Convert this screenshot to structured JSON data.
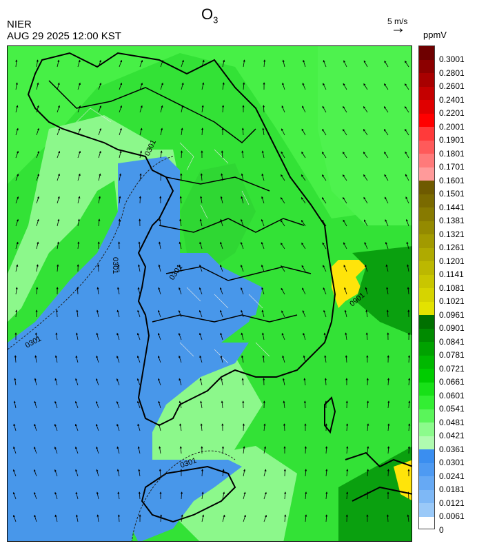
{
  "header": {
    "title_main": "O",
    "title_sub": "3",
    "agency": "NIER",
    "datetime": "AUG 29 2025 12:00 KST",
    "wind_reference": "5 m/s",
    "unit": "ppmV"
  },
  "contour_labels": [
    "0301",
    "0301",
    "0301",
    "0301",
    "0301",
    "0901"
  ],
  "legend": {
    "levels": [
      "0.3001",
      "0.2801",
      "0.2601",
      "0.2401",
      "0.2201",
      "0.2001",
      "0.1901",
      "0.1801",
      "0.1701",
      "0.1601",
      "0.1501",
      "0.1441",
      "0.1381",
      "0.1321",
      "0.1261",
      "0.1201",
      "0.1141",
      "0.1081",
      "0.1021",
      "0.0961",
      "0.0901",
      "0.0841",
      "0.0781",
      "0.0721",
      "0.0661",
      "0.0601",
      "0.0541",
      "0.0481",
      "0.0421",
      "0.0361",
      "0.0301",
      "0.0241",
      "0.0181",
      "0.0121",
      "0.0061",
      "0"
    ],
    "colors": [
      "#6e0000",
      "#8c0000",
      "#a80000",
      "#c40000",
      "#e00000",
      "#ff0000",
      "#ff3a3a",
      "#ff5a5a",
      "#ff7a7a",
      "#ff9a9a",
      "#6e5a00",
      "#7a6a00",
      "#877a00",
      "#948a00",
      "#a29a00",
      "#afaa00",
      "#bcb800",
      "#c9c600",
      "#d6d400",
      "#e3e200",
      "#007000",
      "#008a00",
      "#00a200",
      "#00b800",
      "#00cc00",
      "#18e018",
      "#33ee33",
      "#5af55a",
      "#8cfb8c",
      "#b0fbb0",
      "#3a8ef0",
      "#4e9af2",
      "#66a9f4",
      "#7eb8f6",
      "#9ac9f8"
    ]
  },
  "colors": {
    "sea_shallow": "#38e63a",
    "high_band": "#ffe40a",
    "low_band": "#4897ea"
  }
}
